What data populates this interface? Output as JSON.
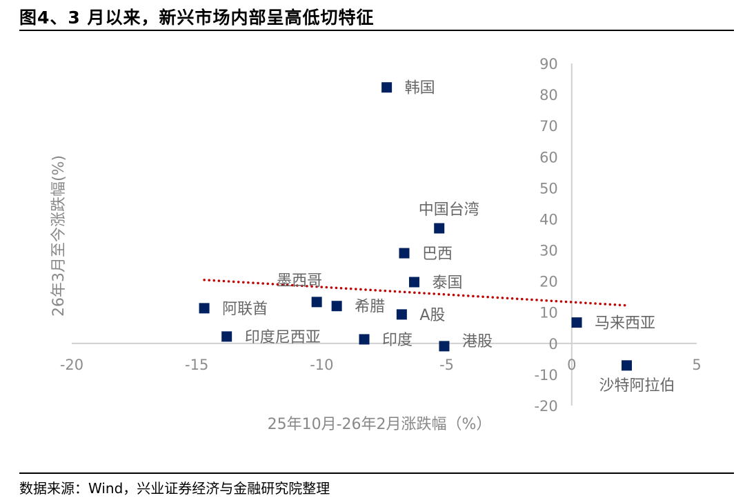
{
  "title": "图4、3 月以来，新兴市场内部呈高低切特征",
  "source": "数据来源：Wind，兴业证券经济与金融研究院整理",
  "chart_data": {
    "type": "scatter",
    "xlabel": "25年10月-26年2月涨跌幅（%）",
    "ylabel": "26年3月至今涨跌幅(%)",
    "xlim": [
      -20,
      5
    ],
    "ylim": [
      -20,
      90
    ],
    "xticks": [
      -20,
      -15,
      -10,
      -5,
      0,
      5
    ],
    "yticks": [
      -20,
      -10,
      0,
      10,
      20,
      30,
      40,
      50,
      60,
      70,
      80,
      90
    ],
    "grid": false,
    "marker_color": "#002060",
    "trendline": {
      "style": "dotted",
      "color": "#c00000",
      "x": [
        -14.7,
        2.2
      ],
      "y": [
        20.4,
        12.2
      ]
    },
    "points": [
      {
        "label": "韩国",
        "x": -7.4,
        "y": 82.3
      },
      {
        "label": "中国台湾",
        "x": -5.3,
        "y": 37.0
      },
      {
        "label": "巴西",
        "x": -6.7,
        "y": 29.0
      },
      {
        "label": "泰国",
        "x": -6.3,
        "y": 19.7
      },
      {
        "label": "墨西哥",
        "x": -10.2,
        "y": 13.3
      },
      {
        "label": "希腊",
        "x": -9.4,
        "y": 12.0
      },
      {
        "label": "A股",
        "x": -6.8,
        "y": 9.3
      },
      {
        "label": "阿联酋",
        "x": -14.7,
        "y": 11.3
      },
      {
        "label": "印度尼西亚",
        "x": -13.8,
        "y": 2.2
      },
      {
        "label": "印度",
        "x": -8.3,
        "y": 1.3
      },
      {
        "label": "港股",
        "x": -5.1,
        "y": -0.9
      },
      {
        "label": "马来西亚",
        "x": 0.2,
        "y": 6.7
      },
      {
        "label": "沙特阿拉伯",
        "x": 2.2,
        "y": -7.1
      }
    ]
  }
}
